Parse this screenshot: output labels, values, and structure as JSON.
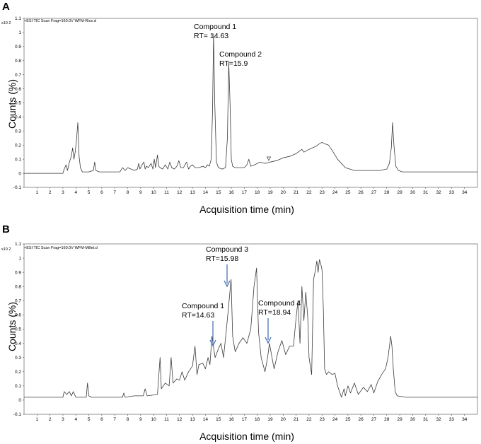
{
  "chart_data": [
    {
      "panel_label": "A",
      "type": "line",
      "header": "+ESI TIC Scan Frag=160.0V WFM-Rice.d",
      "y_multiplier": "x10 2",
      "xlabel": "Acquisition time (min)",
      "ylabel": "Counts (%)",
      "xlim": [
        0,
        35
      ],
      "ylim": [
        -0.1,
        1.1
      ],
      "x_ticks": [
        1,
        2,
        3,
        4,
        5,
        6,
        7,
        8,
        9,
        10,
        11,
        12,
        13,
        14,
        15,
        16,
        17,
        18,
        19,
        20,
        21,
        22,
        23,
        24,
        25,
        26,
        27,
        28,
        29,
        30,
        31,
        32,
        33,
        34
      ],
      "y_ticks": [
        -0.1,
        0,
        0.1,
        0.2,
        0.3,
        0.4,
        0.5,
        0.6,
        0.7,
        0.8,
        0.9,
        1,
        1.1
      ],
      "y_tick_labels": [
        "-0.1",
        "0",
        "0.1",
        "0.2",
        "0.3",
        "0.4",
        "0.5",
        "0.6",
        "0.7",
        "0.8",
        "0.9",
        "1",
        "1.1"
      ],
      "series": [
        {
          "x": [
            0,
            3.0,
            3.1,
            3.25,
            3.35,
            3.5,
            3.65,
            3.75,
            3.85,
            3.95,
            4.05,
            4.15,
            4.25,
            4.35,
            4.5,
            5.0,
            5.35,
            5.45,
            5.55,
            5.8,
            6.5,
            7.4,
            7.6,
            7.8,
            8.0,
            8.5,
            8.75,
            8.85,
            8.95,
            9.1,
            9.25,
            9.35,
            9.45,
            9.6,
            9.8,
            9.95,
            10.05,
            10.15,
            10.3,
            10.4,
            10.5,
            10.7,
            10.9,
            11.1,
            11.25,
            11.4,
            11.6,
            11.8,
            11.95,
            12.1,
            12.3,
            12.55,
            12.7,
            12.85,
            13.0,
            13.2,
            13.5,
            13.8,
            14.0,
            14.15,
            14.3,
            14.45,
            14.55,
            14.63,
            14.72,
            14.85,
            15.0,
            15.3,
            15.55,
            15.7,
            15.8,
            15.9,
            16.0,
            16.1,
            16.3,
            16.6,
            17.0,
            17.2,
            17.35,
            17.5,
            17.8,
            18.2,
            18.6,
            19.0,
            19.5,
            20.0,
            20.5,
            21.0,
            21.3,
            21.45,
            21.6,
            22.0,
            22.5,
            22.8,
            23.0,
            23.2,
            23.5,
            23.8,
            24.2,
            24.8,
            25.5,
            26.5,
            27.5,
            28.0,
            28.2,
            28.35,
            28.45,
            28.55,
            28.7,
            28.9,
            29.2,
            30.0,
            31.0,
            32.0,
            33.0,
            34.0,
            35.0
          ],
          "y": [
            0.0,
            0.0,
            0.03,
            0.06,
            0.02,
            0.08,
            0.12,
            0.18,
            0.1,
            0.15,
            0.24,
            0.36,
            0.12,
            0.04,
            0.01,
            0.01,
            0.02,
            0.08,
            0.02,
            0.01,
            0.01,
            0.01,
            0.04,
            0.02,
            0.04,
            0.02,
            0.03,
            0.07,
            0.03,
            0.06,
            0.08,
            0.03,
            0.05,
            0.04,
            0.07,
            0.03,
            0.1,
            0.04,
            0.13,
            0.05,
            0.04,
            0.03,
            0.06,
            0.03,
            0.08,
            0.04,
            0.03,
            0.05,
            0.09,
            0.04,
            0.04,
            0.08,
            0.03,
            0.05,
            0.06,
            0.04,
            0.04,
            0.05,
            0.04,
            0.06,
            0.05,
            0.1,
            0.45,
            0.99,
            0.5,
            0.08,
            0.04,
            0.03,
            0.04,
            0.25,
            0.79,
            0.5,
            0.1,
            0.05,
            0.04,
            0.04,
            0.04,
            0.06,
            0.1,
            0.05,
            0.06,
            0.08,
            0.07,
            0.08,
            0.09,
            0.11,
            0.12,
            0.14,
            0.16,
            0.17,
            0.15,
            0.17,
            0.19,
            0.21,
            0.22,
            0.21,
            0.2,
            0.16,
            0.1,
            0.04,
            0.02,
            0.02,
            0.02,
            0.03,
            0.07,
            0.18,
            0.36,
            0.2,
            0.05,
            0.02,
            0.01,
            0.01,
            0.01,
            0.01,
            0.01,
            0.01,
            0.01
          ]
        }
      ],
      "annotations": [
        {
          "x": 14.63,
          "y": 0.99,
          "line1": "Compound 1",
          "line2": "RT= 14.63"
        },
        {
          "x": 15.9,
          "y": 0.79,
          "line1": "Compound 2",
          "line2": "RT=15.9"
        }
      ]
    },
    {
      "panel_label": "B",
      "type": "line",
      "header": "+ESI TIC Scan Frag=160.0V WFM-Millet.d",
      "y_multiplier": "x10 2",
      "xlabel": "Acquisition time (min)",
      "ylabel": "Counts (%)",
      "xlim": [
        0,
        35
      ],
      "ylim": [
        -0.1,
        1.1
      ],
      "x_ticks": [
        1,
        2,
        3,
        4,
        5,
        6,
        7,
        8,
        9,
        10,
        11,
        12,
        13,
        14,
        15,
        16,
        17,
        18,
        19,
        20,
        21,
        22,
        23,
        24,
        25,
        26,
        27,
        28,
        29,
        30,
        31,
        32,
        33,
        34
      ],
      "y_ticks": [
        -0.1,
        0,
        0.1,
        0.2,
        0.3,
        0.4,
        0.5,
        0.6,
        0.7,
        0.8,
        0.9,
        1,
        1.1
      ],
      "y_tick_labels": [
        "-0.1",
        "0",
        "0.1",
        "0.2",
        "0.3",
        "0.4",
        "0.5",
        "0.6",
        "0.7",
        "0.8",
        "0.9",
        "1",
        "1.1"
      ],
      "series": [
        {
          "x": [
            0,
            3.0,
            3.1,
            3.3,
            3.5,
            3.65,
            3.8,
            4.0,
            4.8,
            4.9,
            5.0,
            5.2,
            6.0,
            7.6,
            7.7,
            7.8,
            8.5,
            9.2,
            9.35,
            9.5,
            10.3,
            10.5,
            10.6,
            10.9,
            11.2,
            11.35,
            11.5,
            11.8,
            12.0,
            12.2,
            12.4,
            12.7,
            13.0,
            13.2,
            13.35,
            13.5,
            13.8,
            14.0,
            14.2,
            14.35,
            14.5,
            14.63,
            14.75,
            15.0,
            15.2,
            15.4,
            15.6,
            15.75,
            15.98,
            16.1,
            16.3,
            16.6,
            16.9,
            17.2,
            17.5,
            17.75,
            17.95,
            18.1,
            18.3,
            18.6,
            18.8,
            18.94,
            19.1,
            19.3,
            19.6,
            19.9,
            20.2,
            20.5,
            20.8,
            21.0,
            21.15,
            21.3,
            21.45,
            21.6,
            21.75,
            21.9,
            22.0,
            22.2,
            22.35,
            22.5,
            22.6,
            22.7,
            22.8,
            22.9,
            23.0,
            23.1,
            23.2,
            23.35,
            23.5,
            23.8,
            24.0,
            24.2,
            24.5,
            24.7,
            24.8,
            25.0,
            25.2,
            25.5,
            25.8,
            26.2,
            26.5,
            26.8,
            27.0,
            27.3,
            27.6,
            27.9,
            28.1,
            28.3,
            28.4,
            28.5,
            28.65,
            28.8,
            29.5,
            31.0,
            33.0,
            35.0
          ],
          "y": [
            0.02,
            0.02,
            0.06,
            0.04,
            0.06,
            0.03,
            0.06,
            0.02,
            0.02,
            0.12,
            0.03,
            0.02,
            0.02,
            0.02,
            0.05,
            0.02,
            0.03,
            0.03,
            0.08,
            0.03,
            0.04,
            0.3,
            0.08,
            0.12,
            0.1,
            0.3,
            0.12,
            0.15,
            0.14,
            0.2,
            0.14,
            0.2,
            0.24,
            0.38,
            0.18,
            0.25,
            0.26,
            0.22,
            0.3,
            0.25,
            0.45,
            0.37,
            0.3,
            0.36,
            0.4,
            0.3,
            0.48,
            0.62,
            0.85,
            0.45,
            0.34,
            0.4,
            0.44,
            0.4,
            0.5,
            0.8,
            0.93,
            0.48,
            0.3,
            0.2,
            0.3,
            0.4,
            0.32,
            0.22,
            0.34,
            0.42,
            0.32,
            0.38,
            0.38,
            0.58,
            0.7,
            0.4,
            0.8,
            0.56,
            0.76,
            0.58,
            0.3,
            0.18,
            0.85,
            0.92,
            0.98,
            0.9,
            0.99,
            0.96,
            0.92,
            0.65,
            0.22,
            0.18,
            0.2,
            0.18,
            0.19,
            0.1,
            0.02,
            0.08,
            0.03,
            0.1,
            0.05,
            0.12,
            0.04,
            0.09,
            0.06,
            0.11,
            0.05,
            0.13,
            0.18,
            0.22,
            0.3,
            0.45,
            0.38,
            0.22,
            0.06,
            0.03,
            0.02,
            0.02,
            0.02,
            0.02
          ]
        }
      ],
      "annotations": [
        {
          "x": 14.63,
          "y": 0.37,
          "line1": "Compound 1",
          "line2": "RT=14.63"
        },
        {
          "x": 15.98,
          "y": 0.85,
          "line1": "Compound 3",
          "line2": "RT=15.98"
        },
        {
          "x": 18.94,
          "y": 0.4,
          "line1": "Compound 4",
          "line2": "RT=18.94"
        }
      ]
    }
  ]
}
